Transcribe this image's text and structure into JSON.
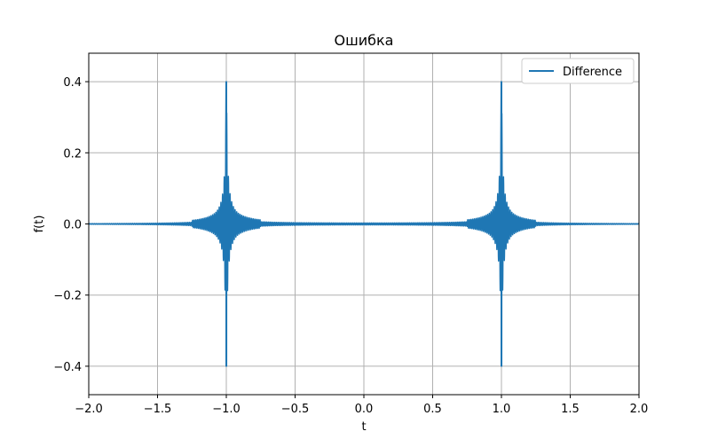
{
  "chart_data": {
    "type": "line",
    "title": "Ошибка",
    "xlabel": "t",
    "ylabel": "f(t)",
    "xlim": [
      -2.0,
      2.0
    ],
    "ylim": [
      -0.48,
      0.48
    ],
    "grid": true,
    "legend_placement": "top-right",
    "x_ticks": [
      -2.0,
      -1.5,
      -1.0,
      -0.5,
      0.0,
      0.5,
      1.0,
      1.5,
      2.0
    ],
    "x_tick_labels": [
      "−2.0",
      "−1.5",
      "−1.0",
      "−0.5",
      "0.0",
      "0.5",
      "1.0",
      "1.5",
      "2.0"
    ],
    "y_ticks": [
      -0.4,
      -0.2,
      0.0,
      0.2,
      0.4
    ],
    "y_tick_labels": [
      "−0.4",
      "−0.2",
      "0.0",
      "0.2",
      "0.4"
    ],
    "series": [
      {
        "name": "Difference",
        "color": "#1f77b4",
        "description_points": [
          {
            "x": -2.0,
            "y": 0.0
          },
          {
            "x": -1.2,
            "y": 0.0
          },
          {
            "x": -1.0,
            "y": 0.4
          },
          {
            "x": -1.0,
            "y": -0.4
          },
          {
            "x": -0.8,
            "y": 0.0
          },
          {
            "x": 0.8,
            "y": 0.0
          },
          {
            "x": 1.0,
            "y": 0.4
          },
          {
            "x": 1.0,
            "y": -0.4
          },
          {
            "x": 1.2,
            "y": 0.0
          },
          {
            "x": 2.0,
            "y": 0.0
          }
        ]
      }
    ]
  }
}
